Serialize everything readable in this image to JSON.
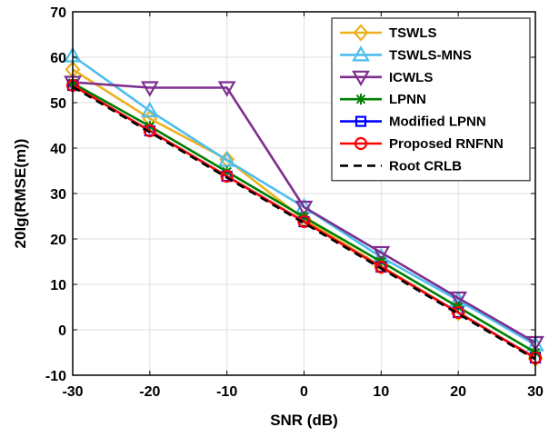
{
  "chart_data": {
    "type": "line",
    "title": "",
    "xlabel": "SNR (dB)",
    "ylabel": "20lg(RMSE(m))",
    "xlim": [
      -30,
      30
    ],
    "ylim": [
      -10,
      70
    ],
    "xticks": [
      -30,
      -20,
      -10,
      0,
      10,
      20,
      30
    ],
    "yticks": [
      -10,
      0,
      10,
      20,
      30,
      40,
      50,
      60,
      70
    ],
    "xtick_labels": [
      "-30",
      "-20",
      "-10",
      "0",
      "10",
      "20",
      "30"
    ],
    "ytick_labels": [
      "-10",
      "0",
      "10",
      "20",
      "30",
      "40",
      "50",
      "60",
      "70"
    ],
    "grid": true,
    "legend_position": "top-right",
    "x": [
      -30,
      -20,
      -10,
      0,
      10,
      20,
      30
    ],
    "series": [
      {
        "name": "TSWLS",
        "color": "#EDB120",
        "marker": "diamond",
        "dash": "solid",
        "values": [
          57.3,
          46.5,
          37.5,
          24.3,
          14.0,
          3.8,
          -6.3
        ]
      },
      {
        "name": "TSWLS-MNS",
        "color": "#4DBEEE",
        "marker": "triangle-up",
        "dash": "solid",
        "values": [
          60.3,
          48.2,
          37.3,
          27.0,
          16.0,
          6.5,
          -3.3
        ]
      },
      {
        "name": "ICWLS",
        "color": "#7E2F8E",
        "marker": "triangle-down",
        "dash": "solid",
        "values": [
          54.5,
          53.3,
          53.3,
          27.0,
          17.0,
          7.0,
          -2.8
        ]
      },
      {
        "name": "LPNN",
        "color": "#008000",
        "marker": "asterisk",
        "dash": "solid",
        "values": [
          54.3,
          44.8,
          34.8,
          24.8,
          15.0,
          5.0,
          -5.0
        ]
      },
      {
        "name": "Modified LPNN",
        "color": "#0000FF",
        "marker": "square",
        "dash": "solid",
        "values": [
          53.8,
          43.8,
          33.8,
          23.8,
          13.8,
          3.8,
          -6.2
        ]
      },
      {
        "name": "Proposed RNFNN",
        "color": "#FF0000",
        "marker": "circle",
        "dash": "solid",
        "values": [
          53.8,
          43.8,
          33.8,
          23.8,
          13.8,
          3.8,
          -6.2
        ]
      },
      {
        "name": "Root CRLB",
        "color": "#000000",
        "marker": "none",
        "dash": "dashed",
        "values": [
          53.5,
          43.5,
          33.5,
          23.5,
          13.5,
          3.5,
          -6.5
        ]
      }
    ]
  }
}
